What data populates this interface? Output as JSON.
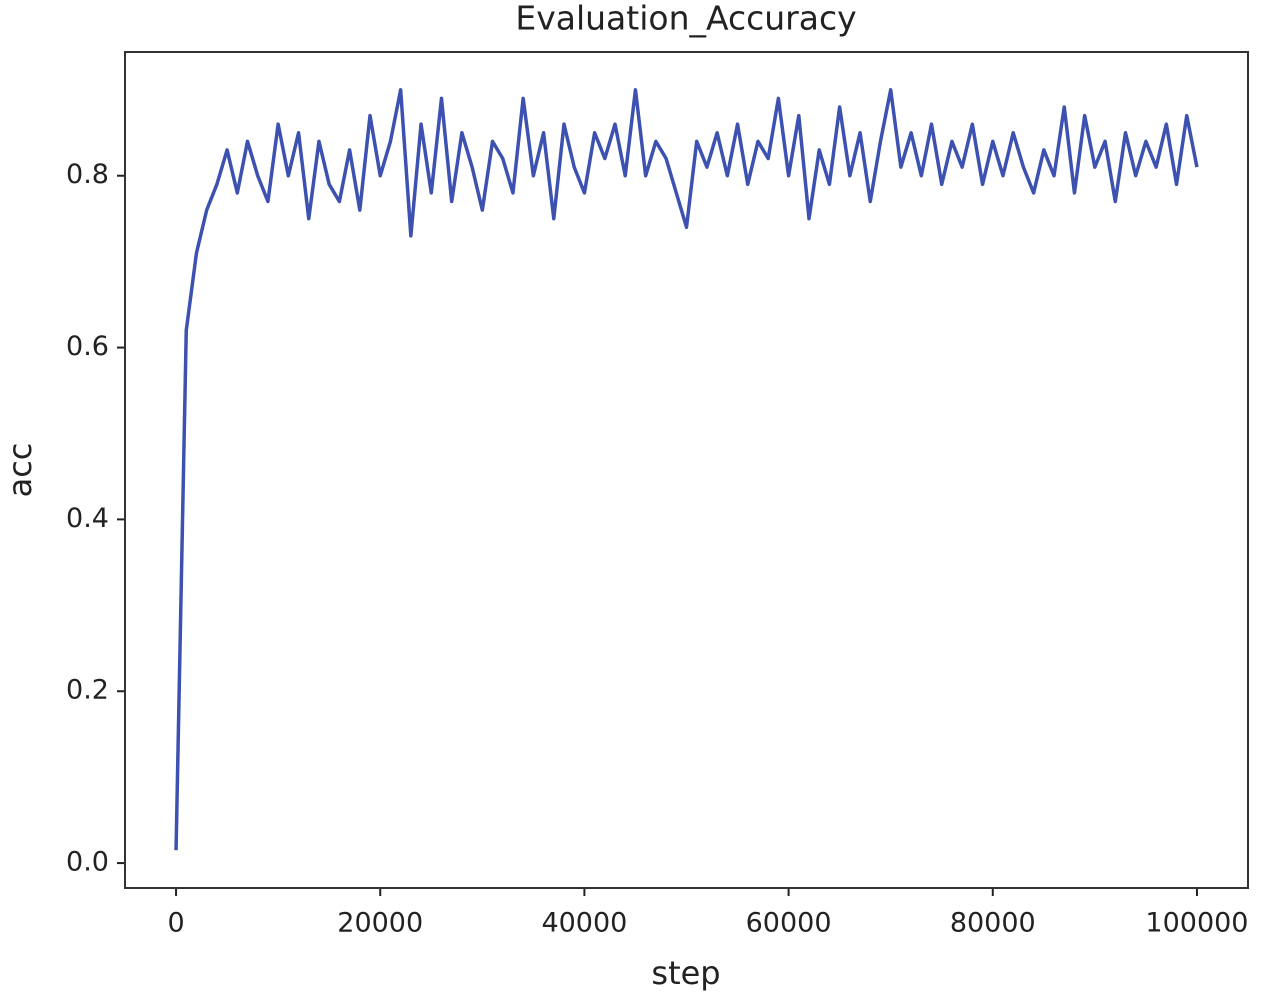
{
  "chart_data": {
    "type": "line",
    "title": "Evaluation_Accuracy",
    "x_label": "step",
    "y_label": "acc",
    "x": [
      0,
      1000,
      2000,
      3000,
      4000,
      5000,
      6000,
      7000,
      8000,
      9000,
      10000,
      11000,
      12000,
      13000,
      14000,
      15000,
      16000,
      17000,
      18000,
      19000,
      20000,
      21000,
      22000,
      23000,
      24000,
      25000,
      26000,
      27000,
      28000,
      29000,
      30000,
      31000,
      32000,
      33000,
      34000,
      35000,
      36000,
      37000,
      38000,
      39000,
      40000,
      41000,
      42000,
      43000,
      44000,
      45000,
      46000,
      47000,
      48000,
      49000,
      50000,
      51000,
      52000,
      53000,
      54000,
      55000,
      56000,
      57000,
      58000,
      59000,
      60000,
      61000,
      62000,
      63000,
      64000,
      65000,
      66000,
      67000,
      68000,
      69000,
      70000,
      71000,
      72000,
      73000,
      74000,
      75000,
      76000,
      77000,
      78000,
      79000,
      80000,
      81000,
      82000,
      83000,
      84000,
      85000,
      86000,
      87000,
      88000,
      89000,
      90000,
      91000,
      92000,
      93000,
      94000,
      95000,
      96000,
      97000,
      98000,
      99000,
      100000
    ],
    "series": [
      {
        "name": "acc",
        "color": "#3d52b0",
        "values": [
          0.015,
          0.62,
          0.71,
          0.76,
          0.79,
          0.83,
          0.78,
          0.84,
          0.8,
          0.77,
          0.86,
          0.8,
          0.85,
          0.75,
          0.84,
          0.79,
          0.77,
          0.83,
          0.76,
          0.87,
          0.8,
          0.84,
          0.9,
          0.73,
          0.86,
          0.78,
          0.89,
          0.77,
          0.85,
          0.81,
          0.76,
          0.84,
          0.82,
          0.78,
          0.89,
          0.8,
          0.85,
          0.75,
          0.86,
          0.81,
          0.78,
          0.85,
          0.82,
          0.86,
          0.8,
          0.9,
          0.8,
          0.84,
          0.82,
          0.78,
          0.74,
          0.84,
          0.81,
          0.85,
          0.8,
          0.86,
          0.79,
          0.84,
          0.82,
          0.89,
          0.8,
          0.87,
          0.75,
          0.83,
          0.79,
          0.88,
          0.8,
          0.85,
          0.77,
          0.84,
          0.9,
          0.81,
          0.85,
          0.8,
          0.86,
          0.79,
          0.84,
          0.81,
          0.86,
          0.79,
          0.84,
          0.8,
          0.85,
          0.81,
          0.78,
          0.83,
          0.8,
          0.88,
          0.78,
          0.87,
          0.81,
          0.84,
          0.77,
          0.85,
          0.8,
          0.84,
          0.81,
          0.86,
          0.79,
          0.87,
          0.81
        ]
      }
    ],
    "xlim": [
      -5000,
      105000
    ],
    "xticks": [
      0,
      20000,
      40000,
      60000,
      80000,
      100000
    ],
    "ylim": [
      -0.029,
      0.944
    ],
    "yticks": [
      {
        "value": 0,
        "label": "0.0"
      },
      0.2,
      0.4,
      0.6,
      0.8
    ],
    "grid": false
  }
}
